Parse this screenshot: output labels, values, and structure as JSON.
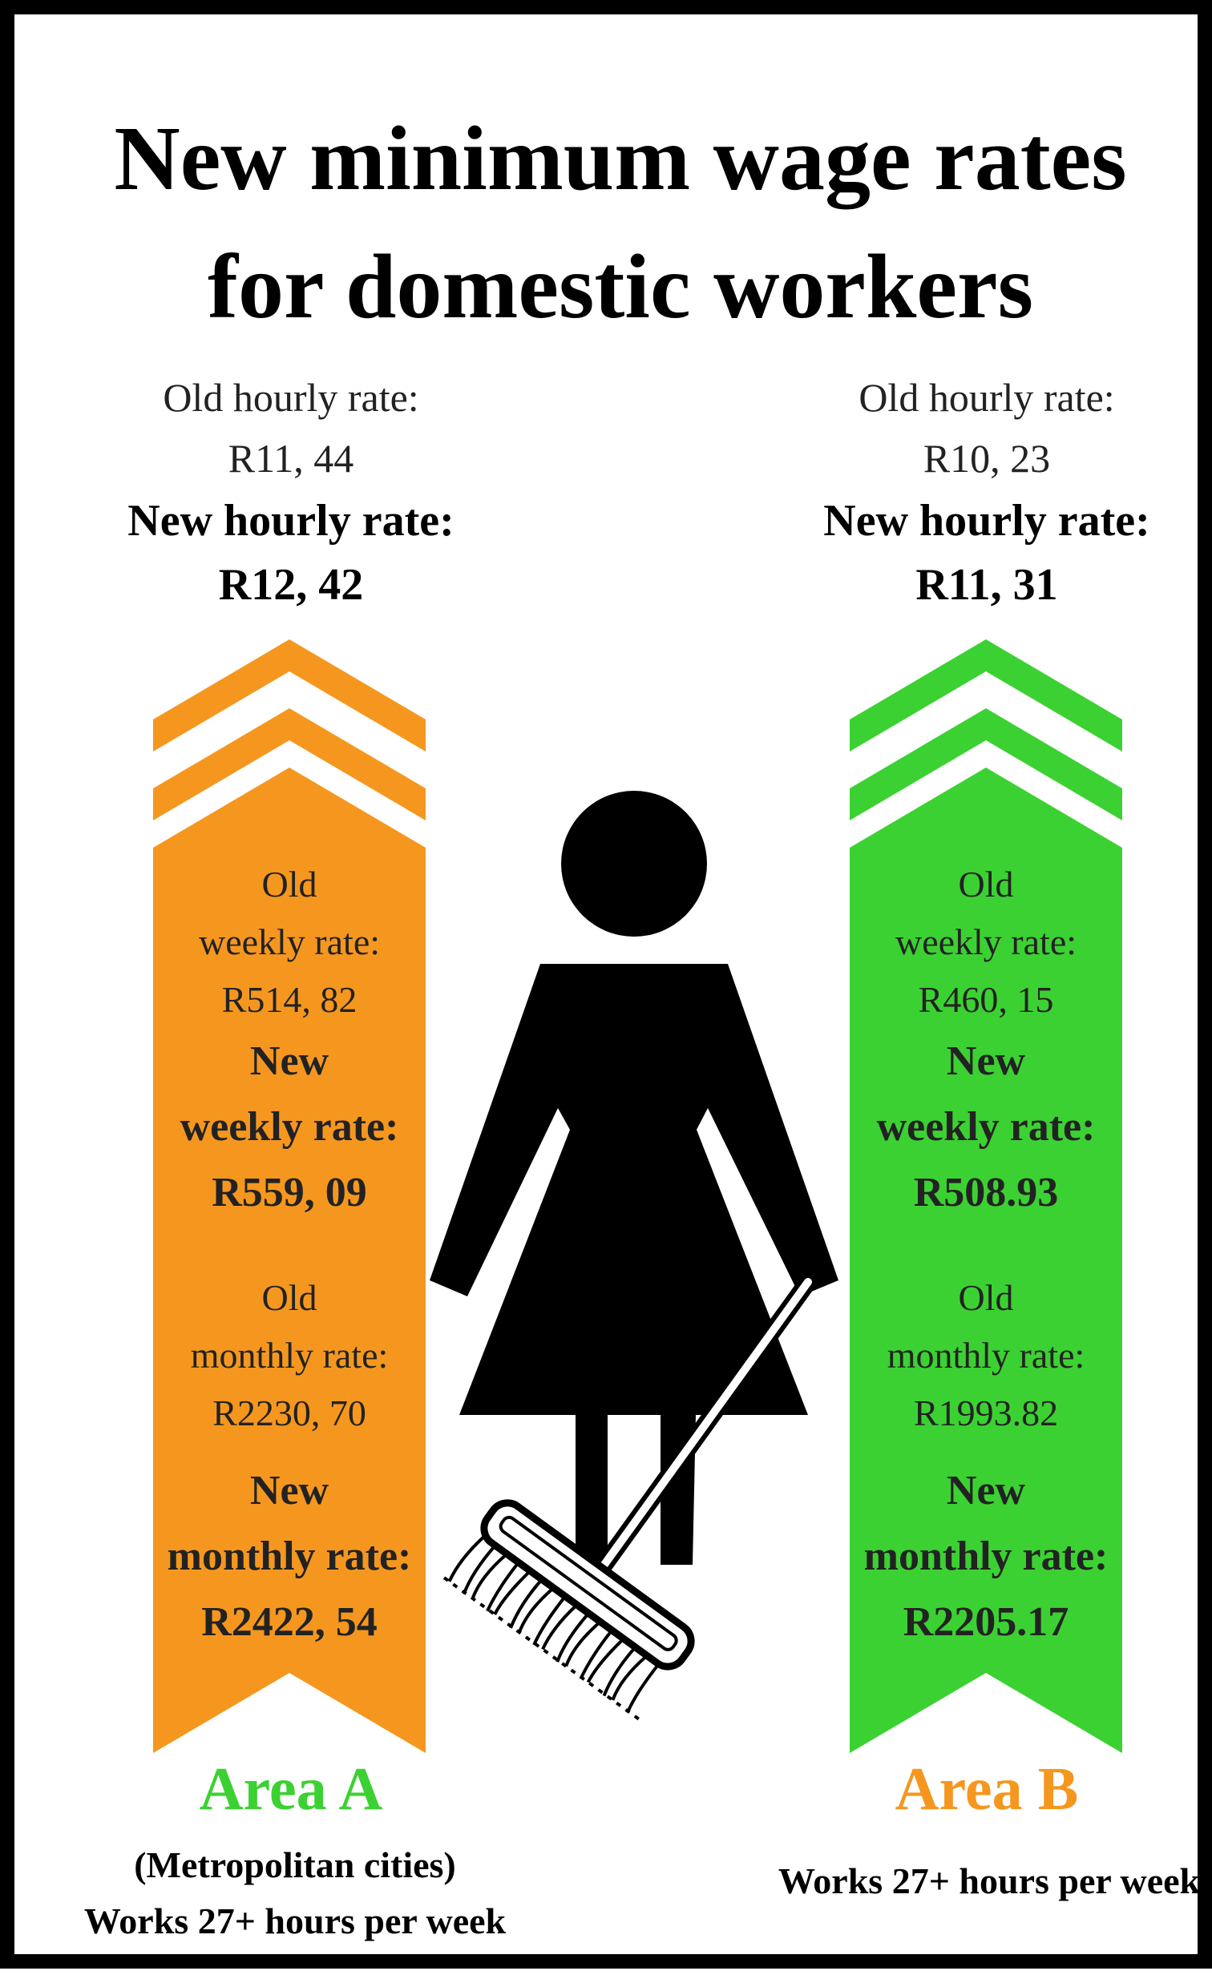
{
  "title": {
    "line1": "New minimum wage rates",
    "line2": "for domestic workers"
  },
  "colors": {
    "orange": "#F5971F",
    "green": "#3CD132",
    "black": "#000000"
  },
  "area_a": {
    "hourly": {
      "old_label": "Old hourly rate:",
      "old_value": "R11, 44",
      "new_label": "New hourly rate:",
      "new_value": "R12, 42"
    },
    "weekly": {
      "old_label_1": "Old",
      "old_label_2": "weekly rate:",
      "old_value": "R514, 82",
      "new_label_1": "New",
      "new_label_2": "weekly rate:",
      "new_value": "R559, 09"
    },
    "monthly": {
      "old_label_1": "Old",
      "old_label_2": "monthly rate:",
      "old_value": "R2230, 70",
      "new_label_1": "New",
      "new_label_2": "monthly rate:",
      "new_value": "R2422, 54"
    },
    "name": "Area A",
    "note_1": "(Metropolitan cities)",
    "note_2": "Works 27+ hours per week"
  },
  "area_b": {
    "hourly": {
      "old_label": "Old hourly rate:",
      "old_value": "R10, 23",
      "new_label": "New hourly rate:",
      "new_value": "R11, 31"
    },
    "weekly": {
      "old_label_1": "Old",
      "old_label_2": "weekly rate:",
      "old_value": "R460, 15",
      "new_label_1": "New",
      "new_label_2": "weekly rate:",
      "new_value": "R508.93"
    },
    "monthly": {
      "old_label_1": "Old",
      "old_label_2": "monthly rate:",
      "old_value": "R1993.82",
      "new_label_1": "New",
      "new_label_2": "monthly rate:",
      "new_value": "R2205.17"
    },
    "name": "Area B",
    "note_1": "Works 27+ hours per week"
  }
}
